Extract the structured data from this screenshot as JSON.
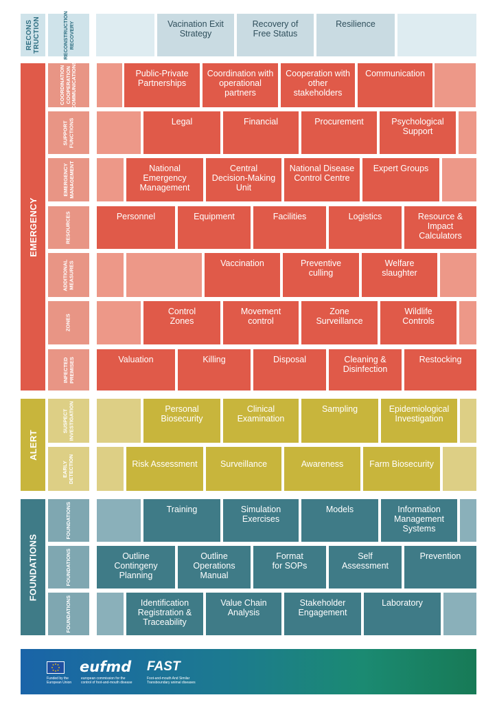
{
  "reconstruction": {
    "side_label": "RECONS\nTRUCTION",
    "sub_label": "RECONSTRUCTION\nRECOVERY",
    "bricks": [
      "Vacination Exit\nStrategy",
      "Recovery of\nFree Status",
      "Resilience"
    ]
  },
  "emergency": {
    "side_label": "EMERGENCY",
    "rows": [
      {
        "label": "COORDINATION\nCOOPERATION\nCOMMUNICATIONS",
        "bricks": [
          "Public-Private\nPartnerships",
          "Coordination with\noperational\npartners",
          "Cooperation with\nother\nstakeholders",
          "Communication"
        ]
      },
      {
        "label": "SUPPORT\nFUNCTIONS",
        "bricks": [
          "Legal",
          "Financial",
          "Procurement",
          "Psychological\nSupport"
        ]
      },
      {
        "label": "EMERGENCY\nMANAGEMENT",
        "bricks": [
          "National\nEmergency\nManagement",
          "Central\nDecision-Making\nUnit",
          "National Disease\nControl Centre",
          "Expert Groups"
        ]
      },
      {
        "label": "RESOURCES",
        "bricks": [
          "Personnel",
          "Equipment",
          "Facilities",
          "Logistics",
          "Resource &\nImpact\nCalculators"
        ]
      },
      {
        "label": "ADDITIONAL\nMEASURES",
        "bricks": [
          "Vaccination",
          "Preventive\nculling",
          "Welfare\nslaughter"
        ]
      },
      {
        "label": "ZONES",
        "bricks": [
          "Control\nZones",
          "Movement\ncontrol",
          "Zone\nSurveillance",
          "Wildlife\nControls"
        ]
      },
      {
        "label": "INFECTED\nPREMISES",
        "bricks": [
          "Valuation",
          "Killing",
          "Disposal",
          "Cleaning &\nDisinfection",
          "Restocking"
        ]
      }
    ]
  },
  "alert": {
    "side_label": "ALERT",
    "rows": [
      {
        "label": "SUSPECT\nINVESTIGATION",
        "bricks": [
          "Personal\nBiosecurity",
          "Clinical\nExamination",
          "Sampling",
          "Epidemiological\nInvestigation"
        ]
      },
      {
        "label": "EARLY\nDETECTION",
        "bricks": [
          "Risk Assessment",
          "Surveillance",
          "Awareness",
          "Farm Biosecurity"
        ]
      }
    ]
  },
  "foundations": {
    "side_label": "FOUNDATIONS",
    "rows": [
      {
        "label": "FOUNDATIONS",
        "bricks": [
          "Training",
          "Simulation\nExercises",
          "Models",
          "Information\nManagement\nSystems"
        ]
      },
      {
        "label": "FOUNDATIONS",
        "bricks": [
          "Outline\nContingeny\nPlanning",
          "Outline\nOperations\nManual",
          "Format\nfor SOPs",
          "Self\nAssessment",
          "Prevention"
        ]
      },
      {
        "label": "FOUNDATIONS",
        "bricks": [
          "Identification\nRegistration &\nTraceability",
          "Value Chain\nAnalysis",
          "Stakeholder\nEngagement",
          "Laboratory"
        ]
      }
    ]
  },
  "footer": {
    "eu_text": "Funded by the\nEuropean Union",
    "eufmd_logo": "eufmd",
    "eufmd_text": "european commission for the\ncontrol of foot-and-mouth disease",
    "fast_logo": "FAST",
    "fast_text": "Foot-and-mouth And Similar\nTransboundary animal diseases"
  }
}
